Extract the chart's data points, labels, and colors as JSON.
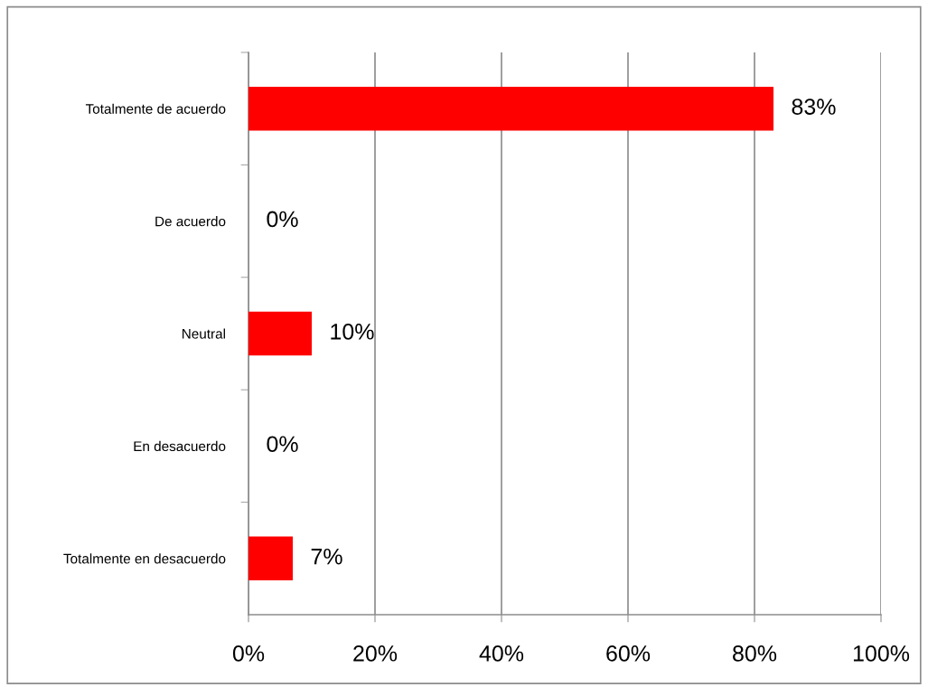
{
  "chart_data": {
    "type": "bar",
    "orientation": "horizontal",
    "categories": [
      "Totalmente de acuerdo",
      "De acuerdo",
      "Neutral",
      "En desacuerdo",
      "Totalmente en desacuerdo"
    ],
    "values": [
      83,
      0,
      10,
      0,
      7
    ],
    "value_labels": [
      "83%",
      "0%",
      "10%",
      "0%",
      "7%"
    ],
    "color": "#ff0000",
    "xlim": [
      0,
      100
    ],
    "xticks": [
      {
        "value": 0,
        "label": "0%"
      },
      {
        "value": 20,
        "label": "20%"
      },
      {
        "value": 40,
        "label": "40%"
      },
      {
        "value": 60,
        "label": "60%"
      },
      {
        "value": 80,
        "label": "80%"
      },
      {
        "value": 100,
        "label": "100%"
      }
    ],
    "grid": "x"
  }
}
